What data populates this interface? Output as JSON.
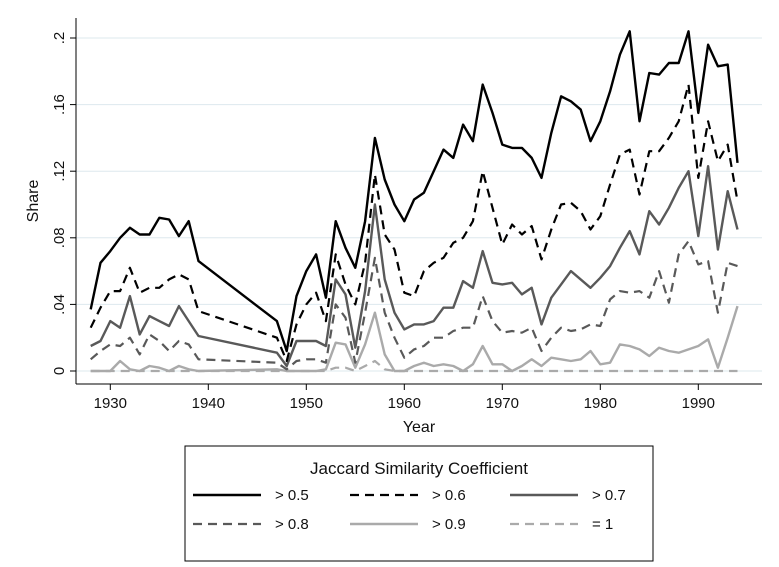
{
  "chart_data": {
    "type": "line",
    "title": "",
    "xlabel": "Year",
    "ylabel": "Share",
    "xlim": [
      1928,
      1994
    ],
    "ylim": [
      0,
      0.2
    ],
    "x_ticks": [
      1930,
      1940,
      1950,
      1960,
      1970,
      1980,
      1990
    ],
    "x_tick_labels": [
      "1930",
      "1940",
      "1950",
      "1960",
      "1970",
      "1980",
      "1990"
    ],
    "y_ticks": [
      0,
      0.04,
      0.08,
      0.12,
      0.16,
      0.2
    ],
    "y_tick_labels": [
      "0",
      ".04",
      ".08",
      ".12",
      ".16",
      ".2"
    ],
    "grid": "horizontal",
    "legend": {
      "title": "Jaccard Similarity Coefficient",
      "placement": "bottom"
    },
    "x": [
      1928,
      1929,
      1930,
      1931,
      1932,
      1933,
      1934,
      1935,
      1936,
      1937,
      1938,
      1939,
      1947,
      1948,
      1949,
      1950,
      1951,
      1952,
      1953,
      1954,
      1955,
      1956,
      1957,
      1958,
      1959,
      1960,
      1961,
      1962,
      1963,
      1964,
      1965,
      1966,
      1967,
      1968,
      1969,
      1970,
      1971,
      1972,
      1973,
      1974,
      1975,
      1976,
      1977,
      1978,
      1979,
      1980,
      1981,
      1982,
      1983,
      1984,
      1985,
      1986,
      1987,
      1988,
      1989,
      1990,
      1991,
      1992,
      1993,
      1994
    ],
    "series": [
      {
        "name": "> 0.5",
        "color": "#000000",
        "width": 2.4,
        "dash": "",
        "values": [
          0.037,
          0.065,
          0.072,
          0.08,
          0.086,
          0.082,
          0.082,
          0.092,
          0.091,
          0.081,
          0.09,
          0.066,
          0.03,
          0.012,
          0.045,
          0.06,
          0.07,
          0.044,
          0.09,
          0.074,
          0.062,
          0.09,
          0.14,
          0.115,
          0.1,
          0.09,
          0.103,
          0.107,
          0.12,
          0.133,
          0.128,
          0.148,
          0.138,
          0.172,
          0.155,
          0.136,
          0.134,
          0.134,
          0.128,
          0.116,
          0.143,
          0.165,
          0.162,
          0.157,
          0.138,
          0.15,
          0.168,
          0.19,
          0.204,
          0.15,
          0.179,
          0.178,
          0.185,
          0.185,
          0.204,
          0.155,
          0.196,
          0.183,
          0.184,
          0.125
        ]
      },
      {
        "name": "> 0.6",
        "color": "#000000",
        "width": 2.2,
        "dash": "9,6",
        "values": [
          0.026,
          0.038,
          0.048,
          0.048,
          0.062,
          0.047,
          0.05,
          0.05,
          0.055,
          0.058,
          0.055,
          0.036,
          0.02,
          0.006,
          0.028,
          0.04,
          0.047,
          0.03,
          0.07,
          0.052,
          0.04,
          0.065,
          0.118,
          0.082,
          0.073,
          0.047,
          0.045,
          0.06,
          0.065,
          0.068,
          0.077,
          0.08,
          0.09,
          0.12,
          0.098,
          0.076,
          0.088,
          0.082,
          0.087,
          0.067,
          0.085,
          0.1,
          0.101,
          0.096,
          0.085,
          0.093,
          0.112,
          0.13,
          0.133,
          0.106,
          0.132,
          0.132,
          0.14,
          0.15,
          0.172,
          0.116,
          0.15,
          0.126,
          0.136,
          0.102
        ]
      },
      {
        "name": "> 0.7",
        "color": "#595959",
        "width": 2.4,
        "dash": "",
        "values": [
          0.015,
          0.018,
          0.03,
          0.026,
          0.045,
          0.022,
          0.033,
          0.03,
          0.027,
          0.039,
          0.03,
          0.021,
          0.011,
          0.003,
          0.018,
          0.018,
          0.018,
          0.015,
          0.055,
          0.046,
          0.014,
          0.048,
          0.1,
          0.055,
          0.035,
          0.025,
          0.028,
          0.028,
          0.03,
          0.038,
          0.038,
          0.054,
          0.05,
          0.072,
          0.053,
          0.052,
          0.053,
          0.046,
          0.05,
          0.028,
          0.044,
          0.052,
          0.06,
          0.055,
          0.05,
          0.056,
          0.063,
          0.074,
          0.084,
          0.07,
          0.096,
          0.088,
          0.098,
          0.11,
          0.12,
          0.081,
          0.123,
          0.073,
          0.108,
          0.085
        ]
      },
      {
        "name": "> 0.8",
        "color": "#595959",
        "width": 2.2,
        "dash": "9,6",
        "values": [
          0.007,
          0.012,
          0.016,
          0.015,
          0.02,
          0.01,
          0.022,
          0.018,
          0.012,
          0.018,
          0.016,
          0.007,
          0.005,
          0.001,
          0.006,
          0.007,
          0.007,
          0.005,
          0.04,
          0.032,
          0.005,
          0.035,
          0.068,
          0.035,
          0.02,
          0.008,
          0.013,
          0.015,
          0.02,
          0.02,
          0.024,
          0.026,
          0.026,
          0.045,
          0.03,
          0.023,
          0.024,
          0.023,
          0.026,
          0.012,
          0.02,
          0.026,
          0.024,
          0.025,
          0.028,
          0.027,
          0.043,
          0.048,
          0.047,
          0.048,
          0.044,
          0.06,
          0.041,
          0.07,
          0.078,
          0.064,
          0.066,
          0.035,
          0.065,
          0.063
        ]
      },
      {
        "name": "> 0.9",
        "color": "#aaaaaa",
        "width": 2.4,
        "dash": "",
        "values": [
          0.0,
          0.0,
          0.0,
          0.006,
          0.001,
          0.0,
          0.003,
          0.002,
          0.0,
          0.003,
          0.001,
          0.0,
          0.001,
          0.0,
          0.0,
          0.0,
          0.0,
          0.001,
          0.017,
          0.016,
          0.002,
          0.016,
          0.035,
          0.01,
          0.0,
          0.0,
          0.003,
          0.005,
          0.003,
          0.004,
          0.003,
          0.0,
          0.004,
          0.015,
          0.004,
          0.004,
          0.0,
          0.003,
          0.007,
          0.003,
          0.008,
          0.007,
          0.006,
          0.007,
          0.012,
          0.004,
          0.005,
          0.016,
          0.015,
          0.013,
          0.009,
          0.014,
          0.012,
          0.011,
          0.013,
          0.015,
          0.019,
          0.002,
          0.02,
          0.039
        ]
      },
      {
        "name": "= 1",
        "color": "#aaaaaa",
        "width": 2.2,
        "dash": "9,6",
        "values": [
          0.0,
          0.0,
          0.0,
          0.0,
          0.0,
          0.0,
          0.0,
          0.0,
          0.0,
          0.0,
          0.0,
          0.0,
          0.0,
          0.0,
          0.0,
          0.0,
          0.0,
          0.0,
          0.002,
          0.002,
          0.0,
          0.003,
          0.006,
          0.001,
          0.0,
          0.0,
          0.0,
          0.0,
          0.0,
          0.0,
          0.0,
          0.0,
          0.0,
          0.0,
          0.0,
          0.0,
          0.0,
          0.0,
          0.0,
          0.0,
          0.0,
          0.0,
          0.0,
          0.0,
          0.0,
          0.0,
          0.0,
          0.0,
          0.0,
          0.0,
          0.0,
          0.0,
          0.0,
          0.0,
          0.0,
          0.0,
          0.0,
          0.0,
          0.0,
          0.0
        ]
      }
    ]
  }
}
